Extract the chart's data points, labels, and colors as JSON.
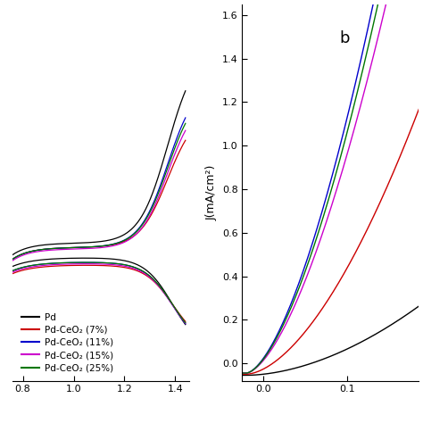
{
  "colors": {
    "Pd": "#000000",
    "Pd-CeO2 7%": "#cc0000",
    "Pd-CeO2 11%": "#0000cc",
    "Pd-CeO2 15%": "#cc00cc",
    "Pd-CeO2 25%": "#007700"
  },
  "legend_labels": [
    "Pd",
    "Pd-CeO₂ (7%)",
    "Pd-CeO₂ (11%)",
    "Pd-CeO₂ (15%)",
    "Pd-CeO₂ (25%)"
  ],
  "panel_b_label": "b",
  "ylabel_b": "J(mA/cm²)",
  "xlim_a": [
    0.76,
    1.455
  ],
  "ylim_a": [
    -0.09,
    0.17
  ],
  "xlim_b": [
    -0.025,
    0.185
  ],
  "ylim_b": [
    -0.08,
    1.65
  ],
  "yticks_b": [
    0.0,
    0.2,
    0.4,
    0.6,
    0.8,
    1.0,
    1.2,
    1.4,
    1.6
  ],
  "xticks_a": [
    0.8,
    1.0,
    1.2,
    1.4
  ],
  "xticks_b": [
    0.0,
    0.1
  ],
  "background": "#ffffff"
}
